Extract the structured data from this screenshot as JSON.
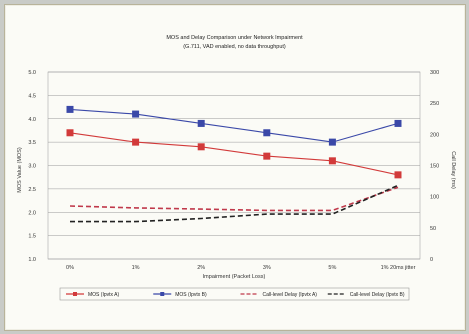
{
  "chart_data": {
    "type": "line",
    "title": "MOS and Delay Comparison under Network Impairment",
    "subtitle": "(G.711, VAD enabled, no data throughput)",
    "xlabel": "Impairment (Packet Loss)",
    "ylabel": "MOS Value (MOS)",
    "y2label": "Call Delay (ms)",
    "categories": [
      "0%",
      "1%",
      "2%",
      "3%",
      "5%",
      "1% 20ms jitter"
    ],
    "ylim": [
      1.0,
      5.0
    ],
    "yticks": [
      "1.0",
      "1.5",
      "2.0",
      "2.5",
      "3.0",
      "3.5",
      "4.0",
      "4.5",
      "5.0"
    ],
    "y2lim": [
      0,
      300
    ],
    "y2ticks": [
      "0",
      "50",
      "100",
      "150",
      "200",
      "250",
      "300"
    ],
    "grid": true,
    "legend_position": "bottom",
    "series": [
      {
        "name": "MOS (Ipvtx A)",
        "axis": "left",
        "color": "#d23a3a",
        "dash": "solid",
        "marker": "square",
        "values": [
          3.7,
          3.5,
          3.4,
          3.2,
          3.1,
          2.8
        ]
      },
      {
        "name": "MOS (Ipvtx B)",
        "axis": "left",
        "color": "#3a48a8",
        "dash": "solid",
        "marker": "square",
        "values": [
          4.2,
          4.1,
          3.9,
          3.7,
          3.5,
          3.9
        ]
      },
      {
        "name": "Call-level Delay (Ipvtx A)",
        "axis": "right",
        "color": "#c0394b",
        "dash": "dashed",
        "marker": "none",
        "values": [
          85,
          82,
          80,
          78,
          78,
          115
        ]
      },
      {
        "name": "Call-level Delay (Ipvtx B)",
        "axis": "right",
        "color": "#222222",
        "dash": "dashed",
        "marker": "none",
        "values": [
          60,
          60,
          65,
          72,
          72,
          118
        ]
      }
    ]
  }
}
